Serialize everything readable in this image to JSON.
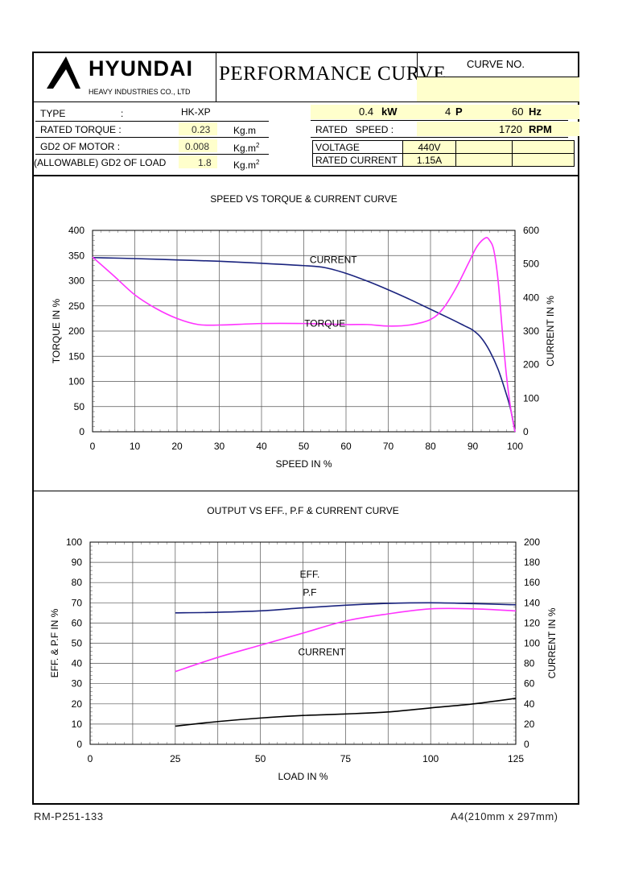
{
  "header": {
    "brand": "HYUNDAI",
    "company": "HEAVY INDUSTRIES CO., LTD",
    "doc_title": "PERFORMANCE CURVE",
    "curve_no_label": "CURVE NO.",
    "curve_no_value": ""
  },
  "specs": {
    "type_label": "TYPE",
    "type_colon": ":",
    "type_value": "HK-XP",
    "rated_torque_label": "RATED TORQUE :",
    "rated_torque_value": "0.23",
    "rated_torque_unit": "Kg.m",
    "gd2_motor_label": "GD2 OF MOTOR :",
    "gd2_motor_value": "0.008",
    "gd2_motor_unit": "Kg.m",
    "gd2_load_label": "(ALLOWABLE) GD2 OF LOAD",
    "gd2_load_value": "1.8",
    "gd2_load_unit": "Kg.m",
    "unit_superscript": "2",
    "power_value": "0.4",
    "power_unit": "kW",
    "poles_value": "4",
    "poles_unit": "P",
    "freq_value": "60",
    "freq_unit": "Hz",
    "rated_speed_label": "RATED   SPEED :",
    "rated_speed_value": "1720",
    "rated_speed_unit": "RPM",
    "voltage_label": "VOLTAGE",
    "voltage_value": "440V",
    "rated_current_label": "RATED CURRENT",
    "rated_current_value": "1.15A"
  },
  "footer": {
    "doc_code": "RM-P251-133",
    "paper_size": "A4(210mm x 297mm)"
  },
  "colors": {
    "blue": "#1a237e",
    "magenta": "#ff33ff",
    "black": "#000000",
    "highlight": "#ffffcc"
  },
  "chart_data": [
    {
      "type": "line",
      "title": "SPEED VS TORQUE & CURRENT CURVE",
      "xlabel": "SPEED IN %",
      "ylabel": "TORQUE IN %",
      "y2label": "CURRENT IN %",
      "xlim": [
        0,
        100
      ],
      "ylim": [
        0,
        400
      ],
      "y2lim": [
        0,
        600
      ],
      "xticks": [
        0,
        10,
        20,
        30,
        40,
        50,
        60,
        70,
        80,
        90,
        100
      ],
      "yticks": [
        0,
        50,
        100,
        150,
        200,
        250,
        300,
        350,
        400
      ],
      "y2ticks": [
        0,
        100,
        200,
        300,
        400,
        500,
        600
      ],
      "grid": true,
      "series": [
        {
          "name": "CURRENT",
          "axis": "right",
          "color": "#1a237e",
          "points": [
            [
              0,
              519
            ],
            [
              10,
              516
            ],
            [
              20,
              512
            ],
            [
              30,
              508
            ],
            [
              40,
              502
            ],
            [
              50,
              495
            ],
            [
              55,
              489
            ],
            [
              60,
              472
            ],
            [
              65,
              449
            ],
            [
              70,
              423
            ],
            [
              75,
              395
            ],
            [
              80,
              365
            ],
            [
              85,
              335
            ],
            [
              88,
              316
            ],
            [
              90,
              303
            ],
            [
              92,
              280
            ],
            [
              94,
              241
            ],
            [
              96,
              186
            ],
            [
              98,
              110
            ],
            [
              99,
              65
            ],
            [
              100,
              0
            ]
          ]
        },
        {
          "name": "TORQUE",
          "axis": "left",
          "color": "#ff33ff",
          "points": [
            [
              0,
              347
            ],
            [
              5,
              310
            ],
            [
              10,
              272
            ],
            [
              15,
              245
            ],
            [
              20,
              225
            ],
            [
              25,
              213
            ],
            [
              30,
              212
            ],
            [
              40,
              215
            ],
            [
              50,
              215
            ],
            [
              60,
              213
            ],
            [
              65,
              213
            ],
            [
              70,
              210
            ],
            [
              75,
              212
            ],
            [
              80,
              223
            ],
            [
              83,
              245
            ],
            [
              86,
              285
            ],
            [
              89,
              335
            ],
            [
              91,
              368
            ],
            [
              93,
              385
            ],
            [
              94,
              380
            ],
            [
              95,
              360
            ],
            [
              96,
              300
            ],
            [
              97,
              200
            ],
            [
              98,
              110
            ],
            [
              99,
              45
            ],
            [
              100,
              0
            ]
          ]
        }
      ],
      "annotations": [
        {
          "text": "CURRENT",
          "x": 57,
          "y": 335
        },
        {
          "text": "TORQUE",
          "x": 55,
          "y": 209
        }
      ]
    },
    {
      "type": "line",
      "title": "OUTPUT VS EFF., P.F & CURRENT CURVE",
      "xlabel": "LOAD IN %",
      "ylabel": "EFF. & P.F IN %",
      "y2label": "CURRENT IN %",
      "xlim": [
        0,
        125
      ],
      "ylim": [
        0,
        100
      ],
      "y2lim": [
        0,
        200
      ],
      "xticks": [
        0,
        25,
        50,
        75,
        100,
        125
      ],
      "yticks": [
        0,
        10,
        20,
        30,
        40,
        50,
        60,
        70,
        80,
        90,
        100
      ],
      "y2ticks": [
        0,
        20,
        40,
        60,
        80,
        100,
        120,
        140,
        160,
        180,
        200
      ],
      "grid": true,
      "series": [
        {
          "name": "EFF.",
          "axis": "left",
          "color": "#ff33ff",
          "points": [
            [
              25,
              36
            ],
            [
              37.5,
              43
            ],
            [
              50,
              49
            ],
            [
              62.5,
              55
            ],
            [
              75,
              61
            ],
            [
              87.5,
              64.5
            ],
            [
              100,
              67
            ],
            [
              112.5,
              67
            ],
            [
              125,
              66
            ]
          ]
        },
        {
          "name": "P.F",
          "axis": "left",
          "color": "#1a237e",
          "points": [
            [
              25,
              65
            ],
            [
              37.5,
              65.3
            ],
            [
              50,
              66
            ],
            [
              62.5,
              67.5
            ],
            [
              75,
              68.8
            ],
            [
              87.5,
              69.7
            ],
            [
              100,
              70
            ],
            [
              112.5,
              69.6
            ],
            [
              125,
              69
            ]
          ]
        },
        {
          "name": "CURRENT",
          "axis": "right",
          "color": "#000000",
          "points": [
            [
              25,
              18
            ],
            [
              37.5,
              22.5
            ],
            [
              50,
              26
            ],
            [
              62.5,
              28.5
            ],
            [
              75,
              30
            ],
            [
              87.5,
              32
            ],
            [
              100,
              36
            ],
            [
              112.5,
              40
            ],
            [
              125,
              45.5
            ]
          ]
        }
      ],
      "annotations": [
        {
          "text": "EFF.",
          "x": 64.5,
          "y": 82.5
        },
        {
          "text": "P.F",
          "x": 64.5,
          "y": 73.5
        },
        {
          "text": "CURRENT",
          "x": 68,
          "y": 44
        }
      ]
    }
  ]
}
